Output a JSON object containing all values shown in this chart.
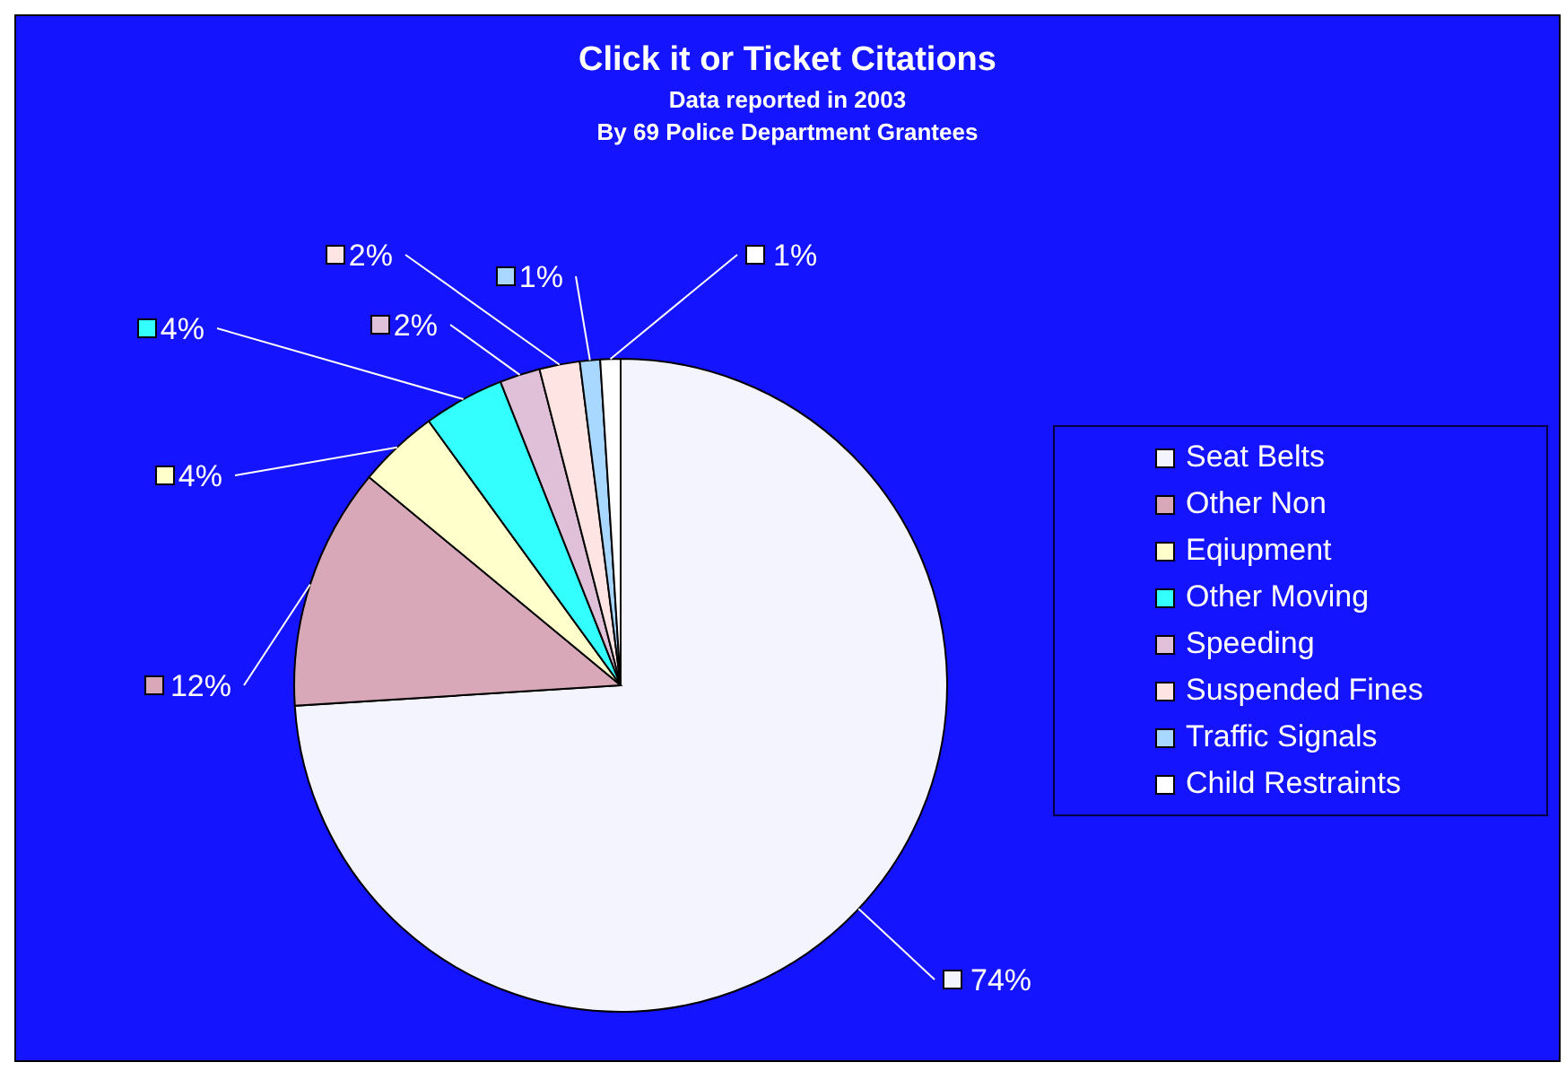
{
  "chart_data": {
    "type": "pie",
    "title": "Click it or Ticket Citations",
    "subtitle": "Data reported in 2003\nBy 69 Police Department Grantees",
    "categories": [
      "Seat Belts",
      "Other Non",
      "Eqiupment",
      "Other Moving",
      "Speeding",
      "Suspended Fines",
      "Traffic Signals",
      "Child Restraints"
    ],
    "values": [
      74,
      12,
      4,
      4,
      2,
      2,
      1,
      1
    ],
    "value_labels": [
      "74%",
      "12%",
      "4%",
      "4%",
      "2%",
      "2%",
      "1%",
      "1%"
    ],
    "colors": [
      "#f4f4ff",
      "#d8a8b8",
      "#ffffcc",
      "#33ffff",
      "#e0c0d8",
      "#ffe4e4",
      "#a8d8ff",
      "#ffffff"
    ],
    "legend": "right"
  }
}
